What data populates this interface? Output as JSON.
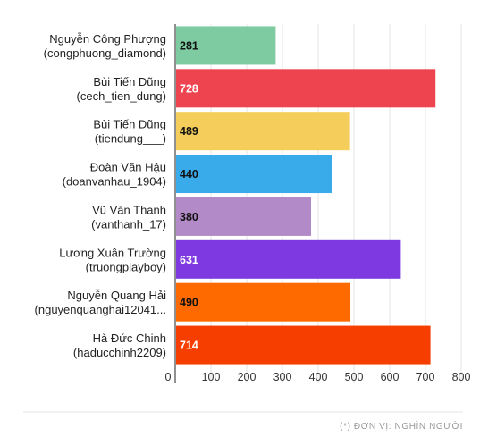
{
  "chart_data": {
    "type": "bar",
    "orientation": "horizontal",
    "categories": [
      [
        "Nguyễn Công Phượng",
        "(congphuong_diamond)"
      ],
      [
        "Bùi Tiến Dũng",
        "(cech_tien_dung)"
      ],
      [
        "Bùi Tiến Dũng",
        "(tiendung___)"
      ],
      [
        "Đoàn Văn Hậu",
        "(doanvanhau_1904)"
      ],
      [
        "Vũ Văn Thanh",
        "(vanthanh_17)"
      ],
      [
        "Lương Xuân Trường",
        "(truongplayboy)"
      ],
      [
        "Nguyễn Quang Hải",
        "(nguyenquanghai12041..."
      ],
      [
        "Hà Đức Chinh",
        "(haducchinh2209)"
      ]
    ],
    "values": [
      281,
      728,
      489,
      440,
      380,
      631,
      490,
      714
    ],
    "colors": [
      "#7ecba1",
      "#ee4450",
      "#f5cd5a",
      "#3aabea",
      "#b38ac8",
      "#7e3ae0",
      "#ff6a00",
      "#f63e00"
    ],
    "value_label_colors": [
      "#111111",
      "#ffffff",
      "#111111",
      "#111111",
      "#111111",
      "#ffffff",
      "#111111",
      "#ffffff"
    ],
    "xlim": [
      0,
      800
    ],
    "xticks": [
      0,
      100,
      200,
      300,
      400,
      500,
      600,
      700,
      800
    ],
    "grid": true,
    "footnote": "(*) ĐƠN VỊ: NGHÌN NGƯỜI"
  }
}
